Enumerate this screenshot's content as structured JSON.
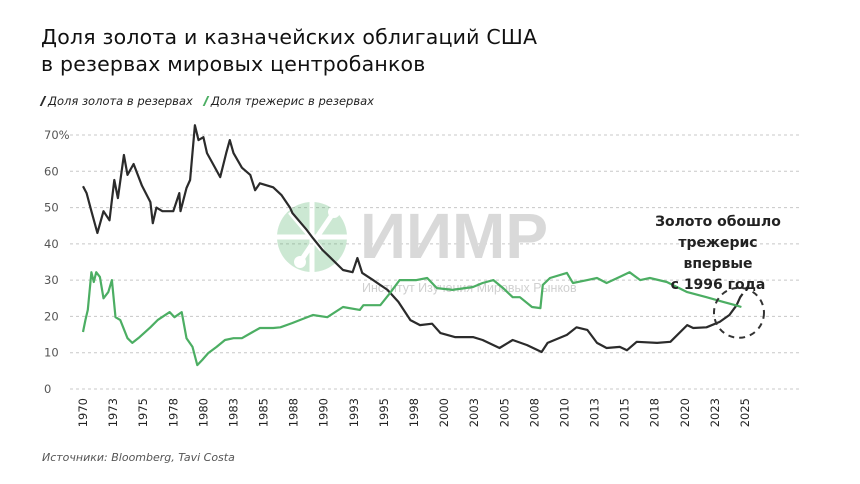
{
  "chart_data": {
    "type": "line",
    "title": "Доля золота и казначейских облигаций США в резервах мировых центробанков",
    "title_lines": [
      "Доля золота и казначейских облигаций США",
      "в резервах мировых центробанков"
    ],
    "xlabel": "",
    "ylabel": "",
    "xlim": [
      1970,
      2025
    ],
    "ylim": [
      0,
      70
    ],
    "y_ticks": [
      0,
      10,
      20,
      30,
      40,
      50,
      60,
      70
    ],
    "y_tick_labels": [
      "0",
      "10",
      "20",
      "30",
      "40",
      "50",
      "60",
      "70%"
    ],
    "x_tick_labels": [
      "1970",
      "1973",
      "1975",
      "1978",
      "1980",
      "1983",
      "1985",
      "1988",
      "1990",
      "1993",
      "1995",
      "1998",
      "2000",
      "2003",
      "2005",
      "2008",
      "2010",
      "2013",
      "2015",
      "2018",
      "2020",
      "2023",
      "2025"
    ],
    "grid": "horizontal dashed",
    "legend_placement": "top-left",
    "series": [
      {
        "name": "Доля золота в резервах",
        "color": "#2b2b2b",
        "x": [
          1970.0,
          1970.3,
          1970.7,
          1971.2,
          1971.7,
          1972.2,
          1972.6,
          1972.9,
          1973.4,
          1973.7,
          1974.2,
          1974.9,
          1975.6,
          1975.8,
          1976.1,
          1976.6,
          1977.5,
          1978.0,
          1978.1,
          1978.6,
          1978.9,
          1979.3,
          1979.6,
          1980.0,
          1980.3,
          1980.8,
          1981.4,
          1981.9,
          1982.2,
          1982.5,
          1983.2,
          1983.9,
          1984.3,
          1984.7,
          1985.8,
          1986.5,
          1987.2,
          1987.4,
          1988.6,
          1989.1,
          1989.9,
          1990.5,
          1991.6,
          1992.4,
          1992.8,
          1993.2,
          1994.1,
          1995.3,
          1996.2,
          1997.2,
          1998.0,
          1999.0,
          1999.7,
          2000.9,
          2002.4,
          2003.2,
          2004.6,
          2005.7,
          2006.9,
          2008.1,
          2008.6,
          2010.2,
          2011.0,
          2011.9,
          2012.7,
          2013.5,
          2014.6,
          2015.2,
          2016.0,
          2017.7,
          2018.8,
          2020.2,
          2020.7,
          2021.8,
          2022.9,
          2023.7,
          2024.3,
          2024.6,
          2024.8
        ],
        "values": [
          55.9,
          54,
          49,
          43,
          49,
          46.5,
          57.6,
          52.6,
          64.5,
          59,
          62,
          56,
          51.5,
          45.7,
          50,
          49,
          49,
          54,
          49,
          55.4,
          57.6,
          72.7,
          68.6,
          69.4,
          65,
          62,
          58.4,
          65,
          68.6,
          65,
          61,
          59,
          54.8,
          56.7,
          55.6,
          53.4,
          50,
          48.5,
          43.8,
          41.6,
          38.3,
          36.4,
          32.8,
          32.2,
          36.1,
          32,
          30,
          27.3,
          24,
          19,
          17.6,
          18,
          15.4,
          14.3,
          14.3,
          13.5,
          11.3,
          13.5,
          12.1,
          10.2,
          12.7,
          14.9,
          17,
          16.3,
          12.7,
          11.3,
          11.6,
          10.7,
          13,
          12.7,
          13,
          17.6,
          16.8,
          17,
          18.5,
          20.4,
          23.1,
          25.3,
          26.2
        ]
      },
      {
        "name": "Доля трежерис в резервах",
        "color": "#4cae63",
        "x": [
          1970.0,
          1970.2,
          1970.4,
          1970.7,
          1970.9,
          1971.1,
          1971.4,
          1971.7,
          1972.1,
          1972.4,
          1972.7,
          1973.1,
          1973.7,
          1974.1,
          1974.7,
          1975.6,
          1976.2,
          1977.2,
          1977.6,
          1978.2,
          1978.6,
          1979.1,
          1979.5,
          1979.9,
          1980.4,
          1981.1,
          1981.8,
          1982.5,
          1983.2,
          1984.1,
          1984.7,
          1985.8,
          1986.4,
          1987.4,
          1988.0,
          1989.1,
          1990.3,
          1991.6,
          1993.0,
          1993.3,
          1994.7,
          1995.5,
          1996.3,
          1997.7,
          1998.6,
          1999.4,
          2000.7,
          2002.4,
          2003.2,
          2004.1,
          2004.9,
          2005.7,
          2006.3,
          2007.3,
          2008.0,
          2008.2,
          2008.8,
          2010.2,
          2010.7,
          2011.9,
          2012.7,
          2013.5,
          2014.6,
          2015.4,
          2016.3,
          2017.1,
          2018.5,
          2020.2,
          2021.8,
          2023.2,
          2024.2,
          2024.7
        ],
        "values": [
          15.7,
          19,
          21.8,
          32.2,
          29.5,
          32.2,
          30.9,
          25,
          26.7,
          30,
          19.8,
          19,
          14,
          12.7,
          14.3,
          17,
          19,
          21.2,
          19.8,
          21.2,
          14,
          11.6,
          6.6,
          8,
          9.9,
          11.6,
          13.5,
          14,
          14,
          15.7,
          16.8,
          16.8,
          17,
          18.2,
          19,
          20.4,
          19.8,
          22.6,
          21.8,
          23.1,
          23.1,
          26.4,
          30,
          30,
          30.6,
          27.8,
          27.3,
          28.1,
          29.2,
          30,
          27.8,
          25.3,
          25.3,
          22.6,
          22.3,
          28.7,
          30.6,
          32,
          29.2,
          30,
          30.6,
          29.2,
          30.9,
          32.2,
          30,
          30.6,
          29.5,
          26.7,
          25.3,
          24,
          23.1,
          22.6
        ]
      }
    ],
    "annotation": {
      "text_lines": [
        "Золото обошло",
        "трежерис впервые",
        "с 1996 года"
      ],
      "circle_at": {
        "x": 2024.5,
        "y": 21
      }
    },
    "source": "Источники: Bloomberg, Tavi Costa"
  },
  "watermark": {
    "logo_text": "ИИМР",
    "subtitle": "Институт Изучения Мировых Рынков",
    "color": "#4cae63"
  }
}
